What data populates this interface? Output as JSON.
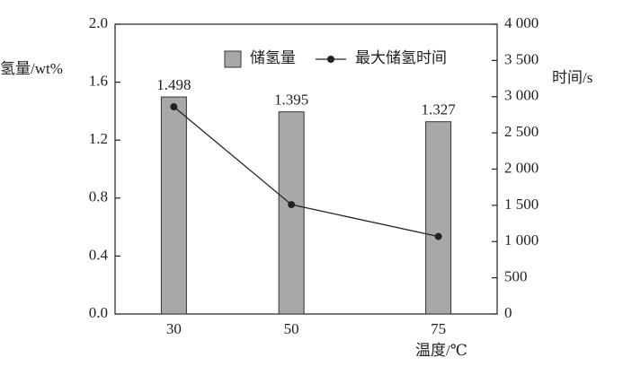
{
  "chart_data": {
    "type": "bar",
    "x_label": "温度/℃",
    "y_label": "氢量/wt%",
    "y2_label": "时间/s",
    "x": [
      30,
      50,
      75
    ],
    "xlim": [
      20,
      85
    ],
    "xticks": [
      30,
      50,
      75
    ],
    "ylim": [
      0,
      2.0
    ],
    "yticks": [
      {
        "value": 0,
        "label": "0.0"
      },
      0.4,
      0.8,
      1.2,
      1.6,
      {
        "value": 2.0,
        "label": "2.0"
      }
    ],
    "y2lim": [
      0,
      4000
    ],
    "y2ticks": [
      0,
      500,
      {
        "value": 1000,
        "label": "1 000"
      },
      {
        "value": 1500,
        "label": "1 500"
      },
      {
        "value": 2000,
        "label": "2 000"
      },
      {
        "value": 2500,
        "label": "2 500"
      },
      {
        "value": 3000,
        "label": "3 000"
      },
      {
        "value": 3500,
        "label": "3 500"
      },
      {
        "value": 4000,
        "label": "4 000"
      }
    ],
    "legend": "upper right",
    "series": [
      {
        "name": "储氢量",
        "type": "bar",
        "color": "#a8a8a8",
        "values": [
          1.498,
          1.395,
          1.327
        ]
      },
      {
        "name": "最大储氢时间",
        "type": "line",
        "color": "#222222",
        "axis": "y2",
        "values": [
          2860,
          1510,
          1070
        ]
      }
    ]
  }
}
